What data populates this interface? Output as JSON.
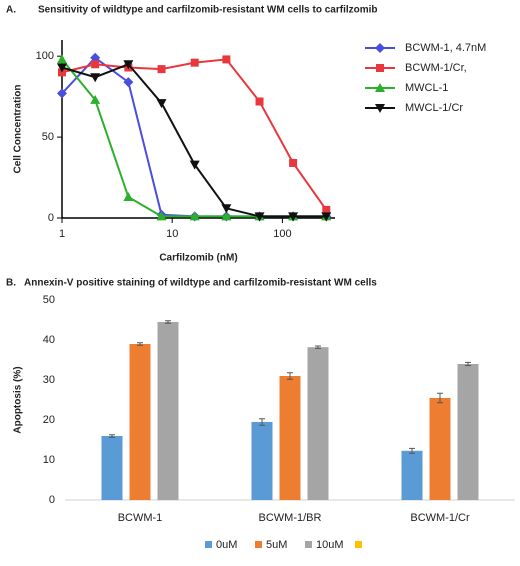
{
  "chart_data": [
    {
      "type": "line",
      "panel": "A.",
      "title": "Sensitivity of wildtype and carfilzomib-resistant WM cells to carfilzomib",
      "x_label": "Carfilzomib (nM)",
      "y_label": "Cell Concentration",
      "xscale": "log",
      "xlim": [
        1,
        300
      ],
      "xticks": [
        1,
        10,
        100
      ],
      "ylim": [
        0,
        110
      ],
      "yticks": [
        0,
        50,
        100
      ],
      "legend": "right",
      "series": [
        {
          "name": "BCWM-1, 4.7nM",
          "color": "#4a4ee0",
          "marker": "diamond",
          "x": [
            1,
            2,
            4,
            8,
            16,
            31,
            62,
            125,
            250
          ],
          "values": [
            77,
            99,
            84,
            2,
            1,
            1,
            1,
            1,
            1
          ]
        },
        {
          "name": "BCWM-1/Cr,",
          "color": "#e8383d",
          "marker": "square",
          "x": [
            1,
            2,
            4,
            8,
            16,
            31,
            62,
            125,
            250
          ],
          "values": [
            90,
            95,
            93,
            92,
            96,
            98,
            72,
            34,
            5
          ]
        },
        {
          "name": "MWCL-1",
          "color": "#2cb02c",
          "marker": "triangle",
          "x": [
            1,
            2,
            4,
            8,
            16,
            31,
            62,
            125,
            250
          ],
          "values": [
            98,
            73,
            13,
            1,
            1,
            1,
            1,
            1,
            1
          ]
        },
        {
          "name": "MWCL-1/Cr",
          "color": "#111111",
          "marker": "triangle-down",
          "x": [
            1,
            2,
            4,
            8,
            16,
            31,
            62,
            125,
            250
          ],
          "values": [
            93,
            87,
            95,
            71,
            33,
            6,
            1,
            1,
            1
          ]
        }
      ]
    },
    {
      "type": "bar",
      "panel": "B.",
      "title": "Annexin-V positive staining of wildtype and carfilzomib-resistant WM cells",
      "y_label": "Apoptosis (%)",
      "categories": [
        "BCWM-1",
        "BCWM-1/BR",
        "BCWM-1/Cr"
      ],
      "ylim": [
        0,
        50
      ],
      "yticks": [
        0,
        10,
        20,
        30,
        40,
        50
      ],
      "legend": "bottom",
      "series": [
        {
          "name": "0uM",
          "color": "#5b9bd5",
          "values": [
            16,
            19.5,
            12.3
          ],
          "errors": [
            0.3,
            0.8,
            0.6
          ]
        },
        {
          "name": "5uM",
          "color": "#ed7d31",
          "values": [
            39,
            31,
            25.5
          ],
          "errors": [
            0.3,
            0.8,
            1.2
          ]
        },
        {
          "name": "10uM",
          "color": "#a5a5a5",
          "values": [
            44.5,
            38.2,
            34
          ],
          "errors": [
            0.3,
            0.3,
            0.4
          ]
        },
        {
          "name": null,
          "color": "#ffc000",
          "values": [
            null,
            null,
            null
          ],
          "errors": [
            null,
            null,
            null
          ]
        }
      ]
    }
  ]
}
